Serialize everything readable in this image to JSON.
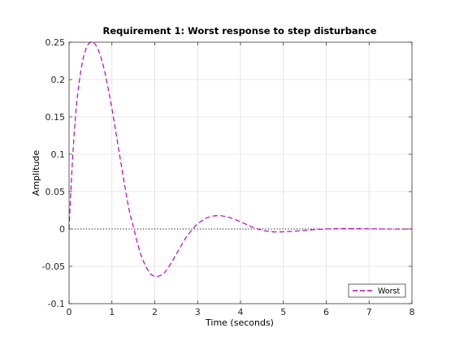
{
  "chart_data": {
    "type": "line",
    "title": "Requirement 1: Worst response to step disturbance",
    "xlabel": "Time (seconds)",
    "ylabel": "Amplitude",
    "xlim": [
      0,
      8
    ],
    "ylim": [
      -0.1,
      0.25
    ],
    "xticks": [
      0,
      1,
      2,
      3,
      4,
      5,
      6,
      7,
      8
    ],
    "xtick_labels": [
      "0",
      "1",
      "2",
      "3",
      "4",
      "5",
      "6",
      "7",
      "8"
    ],
    "yticks": [
      -0.1,
      -0.05,
      0,
      0.05,
      0.1,
      0.15,
      0.2,
      0.25
    ],
    "ytick_labels": [
      "-0.1",
      "-0.05",
      "0",
      "0.05",
      "0.1",
      "0.15",
      "0.2",
      "0.25"
    ],
    "grid": true,
    "legend": {
      "position": "bottom-right"
    },
    "reference_line": {
      "y": 0,
      "style": "dotted",
      "color": "#000000"
    },
    "series": [
      {
        "name": "Worst",
        "color": "#bf00bf",
        "style": "dashed",
        "x": [
          0,
          0.05,
          0.1,
          0.15,
          0.2,
          0.3,
          0.4,
          0.5,
          0.6,
          0.7,
          0.8,
          0.9,
          1.0,
          1.1,
          1.2,
          1.3,
          1.4,
          1.5,
          1.6,
          1.7,
          1.8,
          1.9,
          2.0,
          2.1,
          2.2,
          2.3,
          2.4,
          2.5,
          2.6,
          2.7,
          2.8,
          2.9,
          3.0,
          3.1,
          3.2,
          3.3,
          3.4,
          3.5,
          3.6,
          3.7,
          3.8,
          3.9,
          4.0,
          4.1,
          4.2,
          4.3,
          4.4,
          4.5,
          4.6,
          4.7,
          4.8,
          4.9,
          5.0,
          5.2,
          5.4,
          5.6,
          5.8,
          6.0,
          6.2,
          6.4,
          6.6,
          6.8,
          7.0,
          7.2,
          7.4,
          7.6,
          7.8,
          8.0
        ],
        "y": [
          0,
          0.06,
          0.11,
          0.15,
          0.18,
          0.22,
          0.242,
          0.25,
          0.248,
          0.237,
          0.218,
          0.192,
          0.161,
          0.127,
          0.092,
          0.058,
          0.026,
          0.003,
          -0.02,
          -0.038,
          -0.051,
          -0.06,
          -0.0635,
          -0.063,
          -0.06,
          -0.053,
          -0.044,
          -0.034,
          -0.024,
          -0.014,
          -0.006,
          0.001,
          0.007,
          0.011,
          0.0145,
          0.0165,
          0.0175,
          0.0178,
          0.0172,
          0.016,
          0.0142,
          0.012,
          0.0095,
          0.007,
          0.0045,
          0.002,
          0.0,
          -0.0015,
          -0.0028,
          -0.0035,
          -0.004,
          -0.004,
          -0.0038,
          -0.0032,
          -0.0024,
          -0.0015,
          -0.0006,
          0.0,
          0.0003,
          0.0005,
          0.0005,
          0.0004,
          0.0003,
          0.0001,
          0.0,
          -0.0001,
          -0.0001,
          0.0
        ]
      }
    ]
  }
}
